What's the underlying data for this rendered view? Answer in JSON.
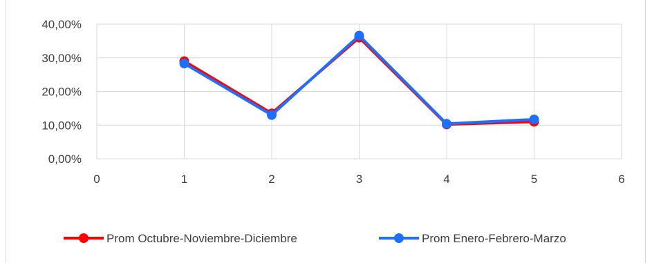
{
  "chart_data": {
    "type": "scatter",
    "title": "",
    "xlabel": "",
    "ylabel": "",
    "xlim": [
      0,
      6
    ],
    "ylim": [
      0,
      0.4
    ],
    "x_ticks": [
      "0",
      "1",
      "2",
      "3",
      "4",
      "5",
      "6"
    ],
    "y_ticks": [
      "0,00%",
      "10,00%",
      "20,00%",
      "30,00%",
      "40,00%"
    ],
    "grid": true,
    "legend_position": "bottom",
    "series": [
      {
        "name": "Prom Octubre-Noviembre-Diciembre",
        "color": "#ff0000",
        "x": [
          1,
          2,
          3,
          4,
          5
        ],
        "y": [
          0.29,
          0.135,
          0.36,
          0.102,
          0.11
        ]
      },
      {
        "name": "Prom Enero-Febrero-Marzo",
        "color": "#1f6fff",
        "x": [
          1,
          2,
          3,
          4,
          5
        ],
        "y": [
          0.283,
          0.13,
          0.366,
          0.104,
          0.117
        ]
      }
    ]
  }
}
